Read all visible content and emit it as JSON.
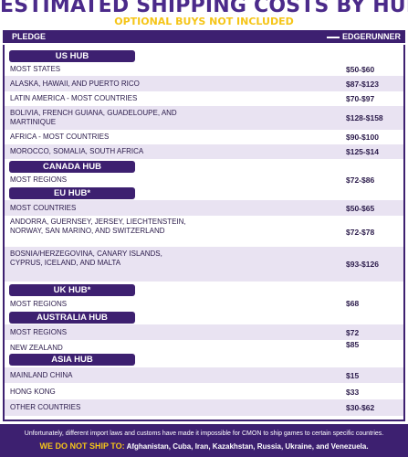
{
  "title": "ESTIMATED SHIPPING COSTS BY HUB",
  "subtitle": "OPTIONAL BUYS NOT INCLUDED",
  "header": {
    "pledge": "PLEDGE",
    "edgerunner": "EDGERUNNER"
  },
  "hubs": [
    {
      "name": "US HUB"
    },
    {
      "name": "CANADA HUB"
    },
    {
      "name": "EU HUB*"
    },
    {
      "name": "UK HUB*"
    },
    {
      "name": "AUSTRALIA HUB"
    },
    {
      "name": "ASIA HUB"
    }
  ],
  "rows": [
    {
      "name": "MOST STATES",
      "price": "$50-$60"
    },
    {
      "name": "ALASKA, HAWAII, AND PUERTO RICO",
      "price": "$87-$123"
    },
    {
      "name": "LATIN AMERICA - MOST COUNTRIES",
      "price": "$70-$97"
    },
    {
      "name": "BOLIVIA, FRENCH GUIANA, GUADELOUPE, AND MARTINIQUE",
      "price": "$128-$158"
    },
    {
      "name": "AFRICA - MOST COUNTRIES",
      "price": "$90-$100"
    },
    {
      "name": "MOROCCO, SOMALIA, SOUTH AFRICA",
      "price": "$125-$14"
    },
    {
      "name": "MOST REGIONS",
      "price": "$72-$86"
    },
    {
      "name": "MOST COUNTRIES",
      "price": "$50-$65"
    },
    {
      "name": "ANDORRA, GUERNSEY, JERSEY, LIECHTENSTEIN, NORWAY, SAN MARINO, AND SWITZERLAND",
      "price": "$72-$78"
    },
    {
      "name": "BOSNIA/HERZEGOVINA, CANARY ISLANDS, CYPRUS, ICELAND, AND MALTA",
      "price": "$93-$126"
    },
    {
      "name": "MOST REGIONS",
      "price": "$68"
    },
    {
      "name": "MOST REGIONS",
      "price": "$72"
    },
    {
      "name": "NEW ZEALAND",
      "price": "$85"
    },
    {
      "name": "MAINLAND CHINA",
      "price": "$15"
    },
    {
      "name": "HONG KONG",
      "price": "$33"
    },
    {
      "name": "OTHER COUNTRIES",
      "price": "$30-$62"
    }
  ],
  "footer": {
    "note": "Unfortunately, different import laws and customs have made it impossible for CMON to ship games to certain specific countries.",
    "no_ship_label": "WE DO NOT SHIP TO:",
    "no_ship_list": "Afghanistan, Cuba, Iran, Kazakhstan, Russia, Ukraine, and Venezuela."
  }
}
